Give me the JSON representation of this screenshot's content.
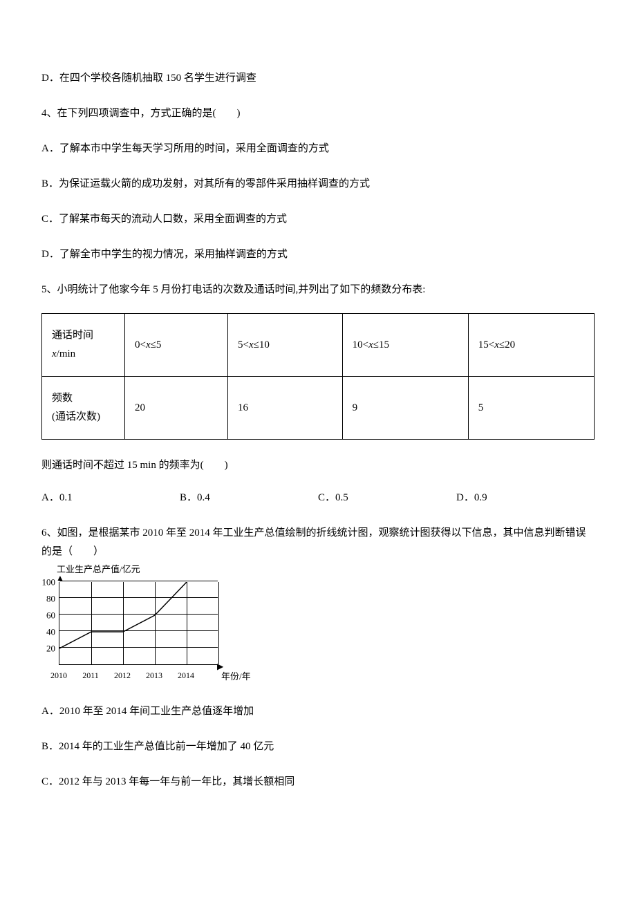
{
  "q3_optD": "D．在四个学校各随机抽取 150 名学生进行调查",
  "q4": {
    "stem": "4、在下列四项调查中，方式正确的是(　　)",
    "A": "A．了解本市中学生每天学习所用的时间，采用全面调查的方式",
    "B": "B．为保证运载火箭的成功发射，对其所有的零部件采用抽样调查的方式",
    "C": "C．了解某市每天的流动人口数，采用全面调查的方式",
    "D": "D．了解全市中学生的视力情况，采用抽样调查的方式"
  },
  "q5": {
    "stem": "5、小明统计了他家今年 5 月份打电话的次数及通话时间,并列出了如下的频数分布表:",
    "row1_label_line1": "通话时间",
    "row1_label_line2_prefix": "",
    "row1_label_line2_suffix": "/min",
    "row2_label_line1": "频数",
    "row2_label_line2": "(通话次数)",
    "intervals": {
      "c1_a": "0<",
      "c1_b": "≤5",
      "c2_a": "5<",
      "c2_b": "≤10",
      "c3_a": "10<",
      "c3_b": "≤15",
      "c4_a": "15<",
      "c4_b": "≤20"
    },
    "freqs": {
      "v1": "20",
      "v2": "16",
      "v3": "9",
      "v4": "5"
    },
    "after": "则通话时间不超过 15 min 的频率为(　　)",
    "opts": {
      "A": "A．0.1",
      "B": "B．0.4",
      "C": "C．0.5",
      "D": "D．0.9"
    }
  },
  "q6": {
    "stem": "6、如图，是根据某市 2010 年至 2014 年工业生产总值绘制的折线统计图，观察统计图获得以下信息，其中信息判断错误的是（　　）",
    "A": "A．2010 年至 2014 年间工业生产总值逐年增加",
    "B": "B．2014 年的工业生产总值比前一年增加了 40 亿元",
    "C": "C．2012 年与 2013 年每一年与前一年比，其增长额相同"
  },
  "chart": {
    "y_title": "工业生产总产值/亿元",
    "x_title": "年份/年",
    "y_ticks": [
      20,
      40,
      60,
      80,
      100
    ],
    "y_max": 100,
    "x_labels": [
      "2010",
      "2011",
      "2012",
      "2013",
      "2014"
    ],
    "points": [
      [
        0,
        20
      ],
      [
        1,
        40
      ],
      [
        2,
        40
      ],
      [
        3,
        60
      ],
      [
        4,
        100
      ]
    ],
    "grid_color": "#000000",
    "line_color": "#000000",
    "background": "#ffffff",
    "grid_cols": 5,
    "grid_rows": 5
  }
}
